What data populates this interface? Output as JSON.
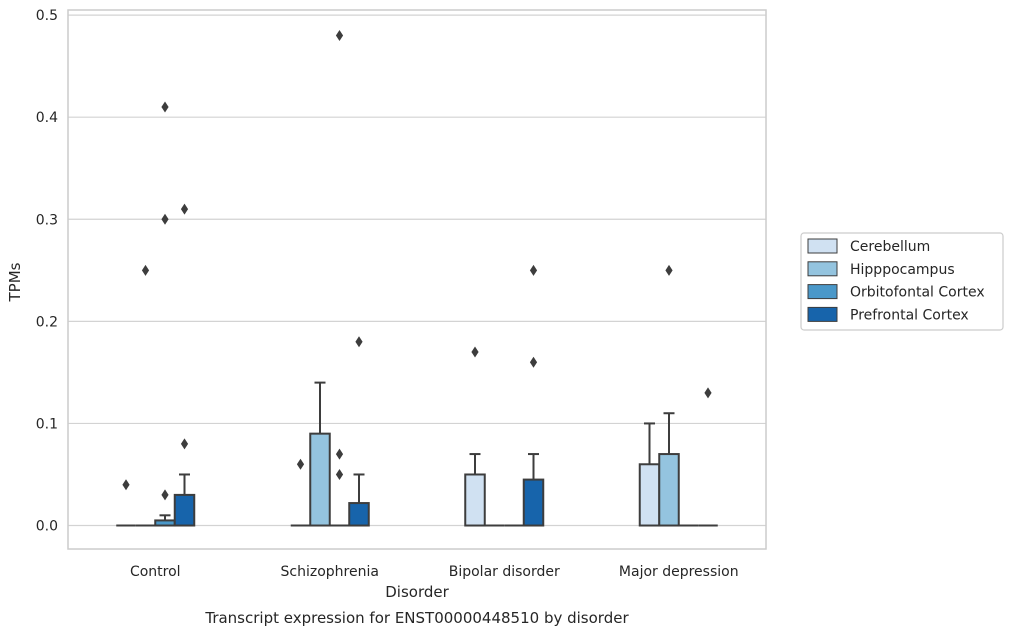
{
  "chart_data": {
    "type": "box",
    "xlabel": "Disorder",
    "ylabel": "TPMs",
    "caption": "Transcript expression for ENST00000448510 by disorder",
    "ylim": [
      -0.023,
      0.505
    ],
    "yticks": [
      0.0,
      0.1,
      0.2,
      0.3,
      0.4,
      0.5
    ],
    "ytick_labels": [
      "0.0",
      "0.1",
      "0.2",
      "0.3",
      "0.4",
      "0.5"
    ],
    "grid": true,
    "legend_position": "right",
    "categories": [
      "Control",
      "Schizophrenia",
      "Bipolar disorder",
      "Major depression"
    ],
    "series": [
      {
        "name": "Cerebellum",
        "color": "#d0e1f2",
        "boxes": [
          {
            "q1": 0,
            "q3": 0,
            "whisker_high": 0,
            "outliers": [
              0.04
            ]
          },
          {
            "q1": 0,
            "q3": 0,
            "whisker_high": 0,
            "outliers": [
              0.06
            ]
          },
          {
            "q1": 0,
            "q3": 0.05,
            "whisker_high": 0.07,
            "outliers": [
              0.17
            ]
          },
          {
            "q1": 0,
            "q3": 0.06,
            "whisker_high": 0.1,
            "outliers": []
          }
        ]
      },
      {
        "name": "Hipppocampus",
        "color": "#94c4df",
        "boxes": [
          {
            "q1": 0,
            "q3": 0,
            "whisker_high": 0,
            "outliers": [
              0.25
            ]
          },
          {
            "q1": 0,
            "q3": 0.09,
            "whisker_high": 0.14,
            "outliers": []
          },
          {
            "q1": 0,
            "q3": 0,
            "whisker_high": 0,
            "outliers": []
          },
          {
            "q1": 0,
            "q3": 0.07,
            "whisker_high": 0.11,
            "outliers": [
              0.25
            ]
          }
        ]
      },
      {
        "name": "Orbitofontal Cortex",
        "color": "#4a98c9",
        "boxes": [
          {
            "q1": 0,
            "q3": 0.005,
            "whisker_high": 0.01,
            "outliers": [
              0.03,
              0.3,
              0.41
            ]
          },
          {
            "q1": 0,
            "q3": 0,
            "whisker_high": 0,
            "outliers": [
              0.05,
              0.07,
              0.48
            ]
          },
          {
            "q1": 0,
            "q3": 0,
            "whisker_high": 0,
            "outliers": []
          },
          {
            "q1": 0,
            "q3": 0,
            "whisker_high": 0,
            "outliers": []
          }
        ]
      },
      {
        "name": "Prefrontal Cortex",
        "color": "#1764ab",
        "boxes": [
          {
            "q1": 0,
            "q3": 0.03,
            "whisker_high": 0.05,
            "outliers": [
              0.08,
              0.31
            ]
          },
          {
            "q1": 0,
            "q3": 0.022,
            "whisker_high": 0.05,
            "outliers": [
              0.18
            ]
          },
          {
            "q1": 0,
            "q3": 0.045,
            "whisker_high": 0.07,
            "outliers": [
              0.16,
              0.25
            ]
          },
          {
            "q1": 0,
            "q3": 0,
            "whisker_high": 0,
            "outliers": [
              0.13
            ]
          }
        ]
      }
    ]
  }
}
